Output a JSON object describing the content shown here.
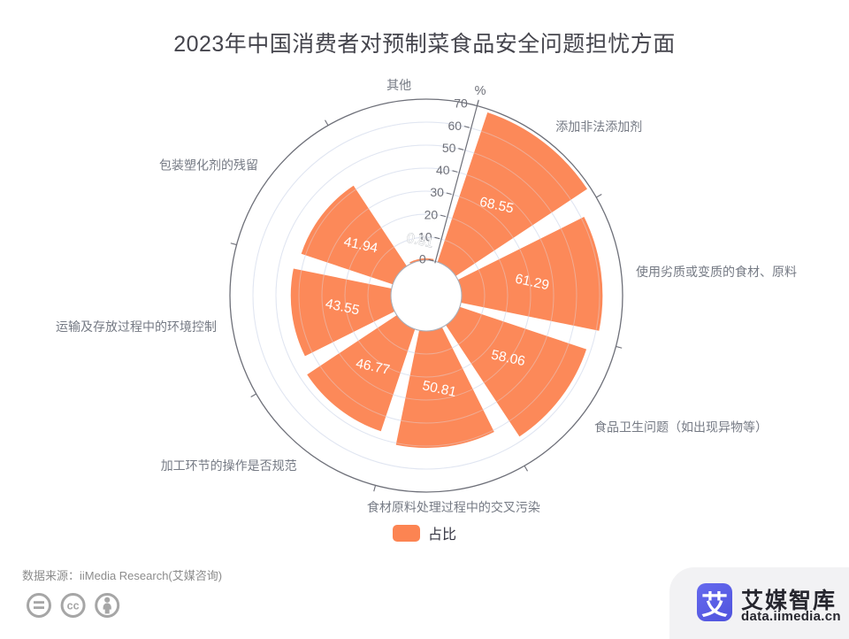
{
  "title": "2023年中国消费者对预制菜食品安全问题担忧方面",
  "chart_data": {
    "type": "bar",
    "subtype": "polar-nightingale-rose",
    "title": "2023年中国消费者对预制菜食品安全问题担忧方面",
    "series_name": "占比",
    "categories": [
      "添加非法添加剂",
      "使用劣质或变质的食材、原料",
      "食品卫生问题（如出现异物等）",
      "食材原料处理过程中的交叉污染",
      "加工环节的操作是否规范",
      "运输及存放过程中的环境控制",
      "包装塑化剂的残留",
      "其他"
    ],
    "values": [
      68.55,
      61.29,
      58.06,
      50.81,
      46.77,
      43.55,
      41.94,
      0.81
    ],
    "radial_axis": {
      "min": 0,
      "max": 70,
      "ticks": [
        0,
        10,
        20,
        30,
        40,
        50,
        60,
        70
      ],
      "unit": "%"
    },
    "start_angle_deg": 75,
    "sector_span_deg": 45,
    "bar_width_deg": 38,
    "legend_position": "bottom",
    "grid": true,
    "colors": {
      "bar": "#FC8452",
      "grid_line": "#E0E6F1",
      "axis_line": "#6E7079",
      "axis_label": "#6E7079",
      "category_label": "#757a84",
      "value_label": "#FFFFFF",
      "hole_border": "#A9AEB8"
    }
  },
  "footer": {
    "source": "数据来源：iiMedia Research(艾媒咨询)",
    "license_icons": [
      "equals-icon",
      "cc-icon",
      "attribution-person-icon"
    ]
  },
  "brand": {
    "logo_char": "艾",
    "name": "艾媒智库",
    "domain": "data.iimedia.cn",
    "logo_color": "#5659E3"
  }
}
